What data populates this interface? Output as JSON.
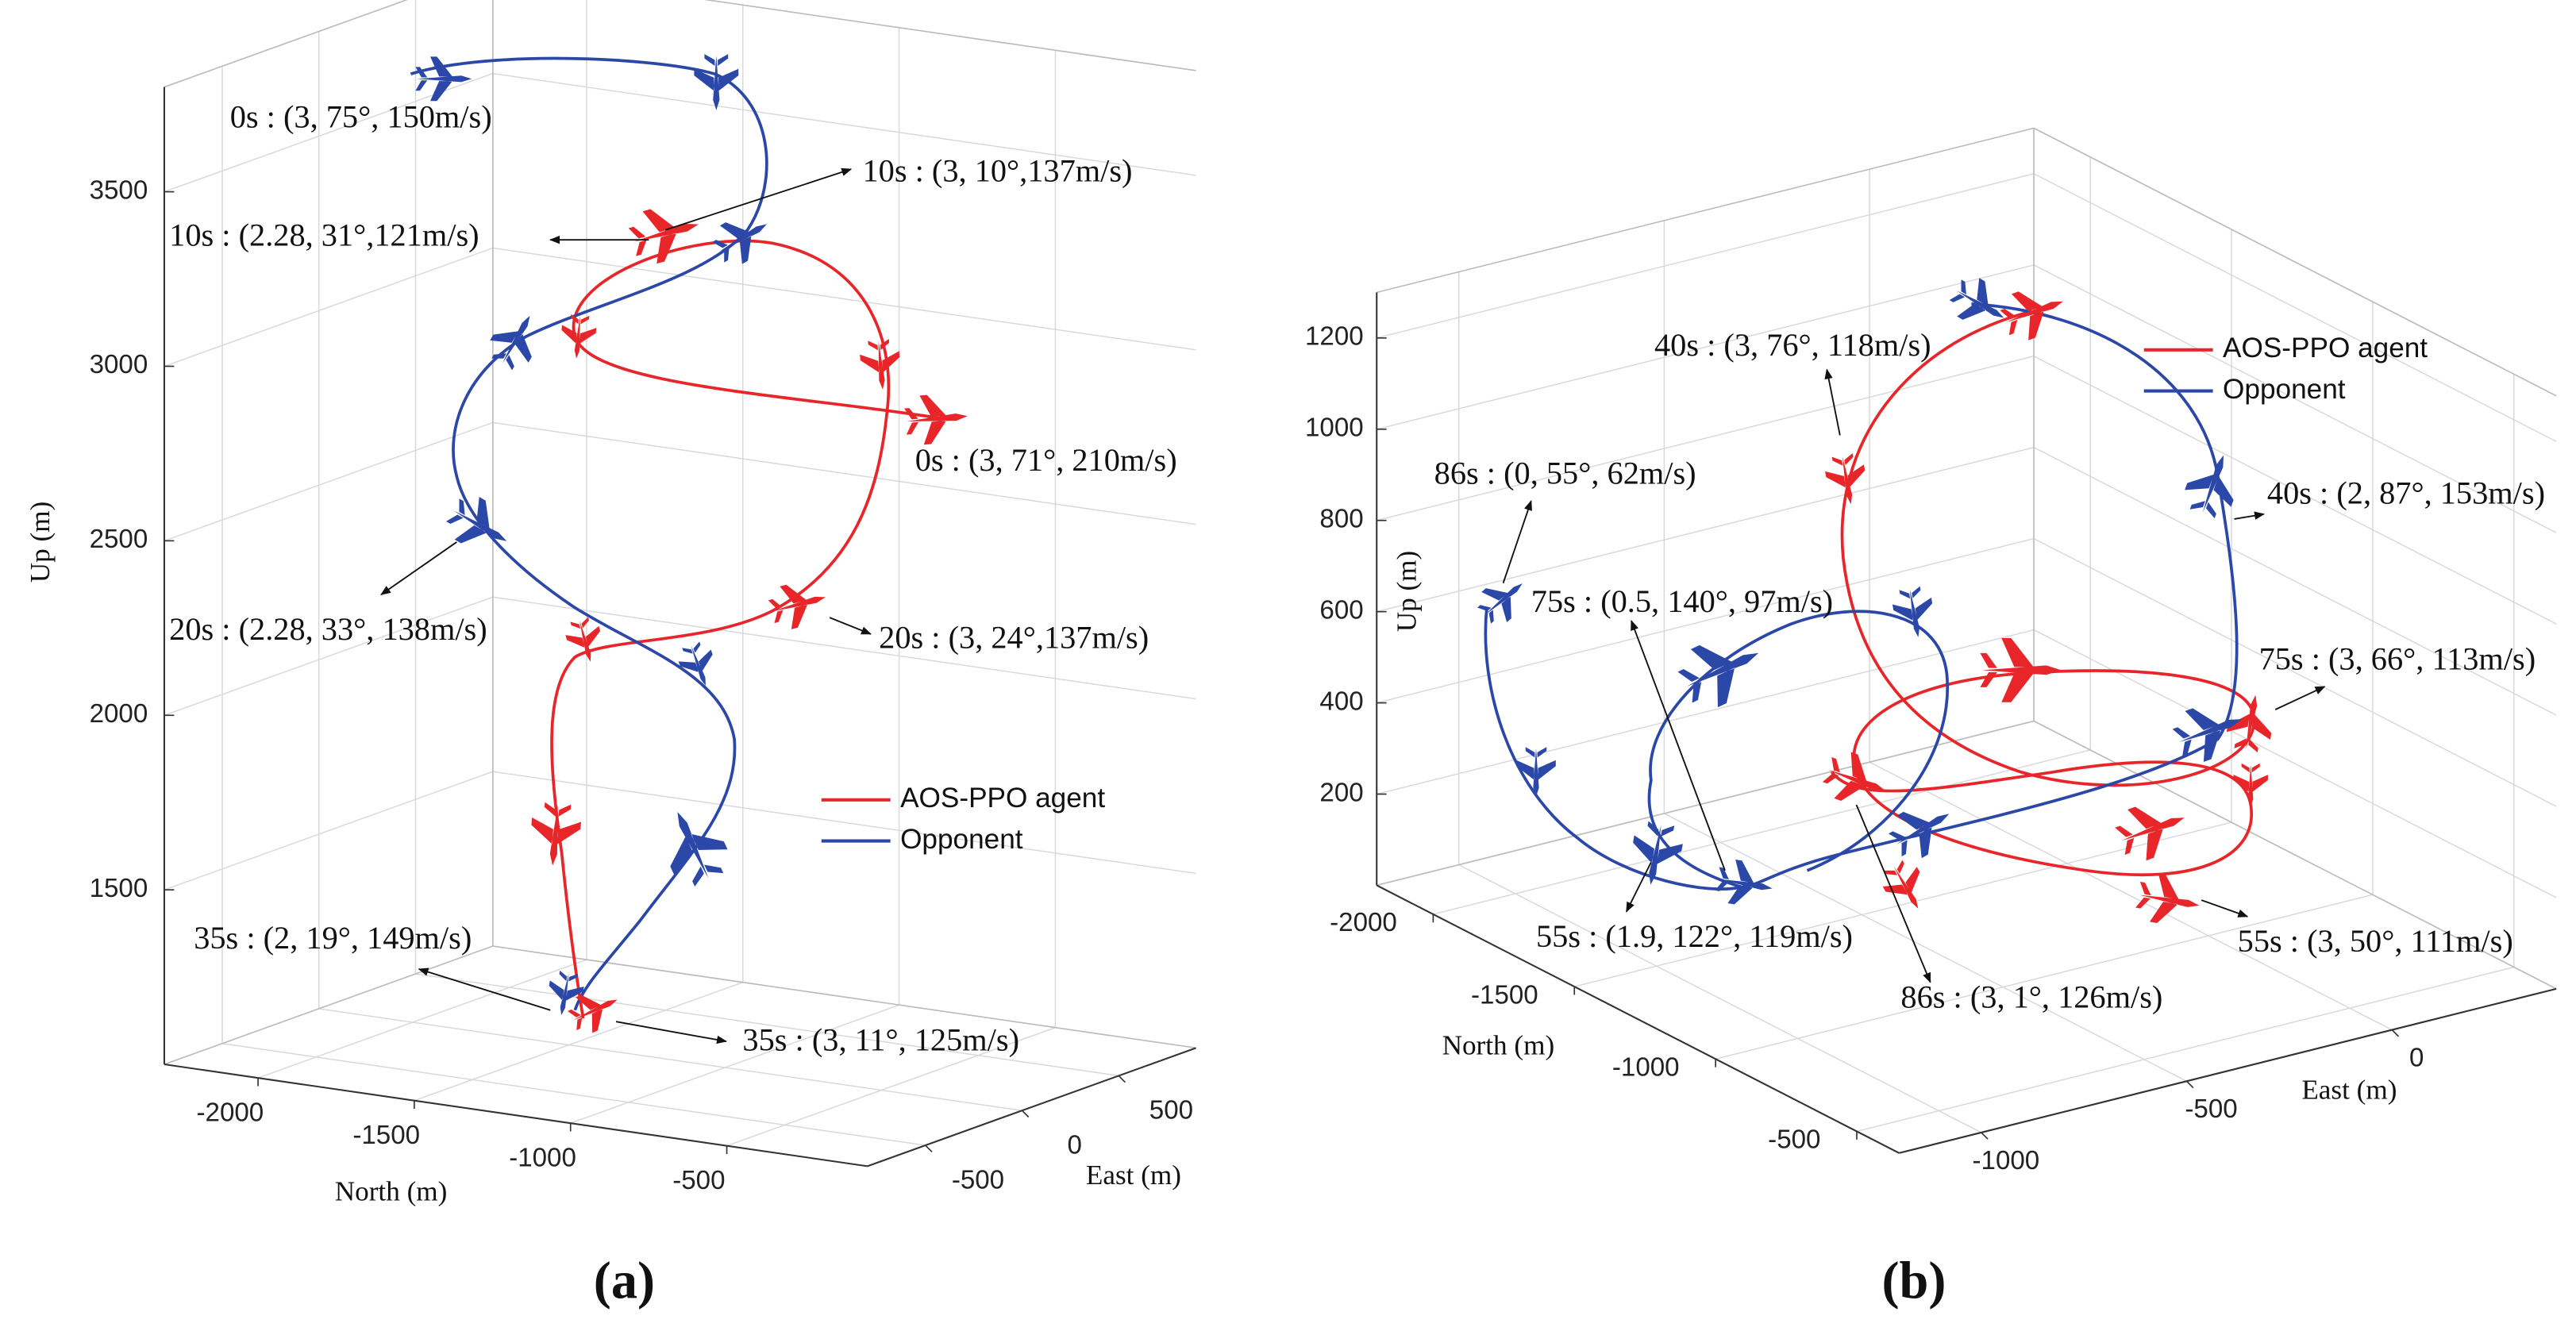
{
  "chart_data": [
    {
      "type": "line3d",
      "panel_label": "(a)",
      "xlabel": "North (m)",
      "ylabel": "East (m)",
      "zlabel": "Up (m)",
      "xlim": [
        -2300,
        -50
      ],
      "ylim": [
        -800,
        900
      ],
      "zlim": [
        1000,
        3800
      ],
      "xticks": [
        -2000,
        -1500,
        -1000,
        -500
      ],
      "yticks": [
        -500,
        0,
        500
      ],
      "zticks": [
        1500,
        2000,
        2500,
        3000,
        3500
      ],
      "grid": true,
      "series": [
        {
          "name": "AOS-PPO agent",
          "color": "#e8262a"
        },
        {
          "name": "Opponent",
          "color": "#2b48a8"
        }
      ],
      "annotations": [
        "0s : (3, 75°, 150m/s)",
        "10s : (3, 10°,137m/s)",
        "10s : (2.28, 31°,121m/s)",
        "0s : (3, 71°, 210m/s)",
        "20s : (2.28, 33°, 138m/s)",
        "20s : (3, 24°,137m/s)",
        "35s : (2, 19°, 149m/s)",
        "35s : (3, 11°, 125m/s)"
      ]
    },
    {
      "type": "line3d",
      "panel_label": "(b)",
      "xlabel": "North (m)",
      "ylabel": "East (m)",
      "zlabel": "Up (m)",
      "xlim": [
        -2200,
        -350
      ],
      "ylim": [
        -1200,
        400
      ],
      "zlim": [
        0,
        1300
      ],
      "xticks": [
        -2000,
        -1500,
        -1000,
        -500
      ],
      "yticks": [
        -1000,
        -500,
        0
      ],
      "zticks": [
        200,
        400,
        600,
        800,
        1000,
        1200
      ],
      "grid": true,
      "series": [
        {
          "name": "AOS-PPO agent",
          "color": "#e8262a"
        },
        {
          "name": "Opponent",
          "color": "#2b48a8"
        }
      ],
      "annotations": [
        "40s : (3, 76°, 118m/s)",
        "86s : (0, 55°, 62m/s)",
        "40s : (2, 87°, 153m/s)",
        "75s : (0.5, 140°, 97m/s)",
        "75s : (3, 66°, 113m/s)",
        "55s : (1.9, 122°, 119m/s)",
        "55s : (3, 50°, 111m/s)",
        "86s : (3, 1°, 126m/s)"
      ]
    }
  ]
}
